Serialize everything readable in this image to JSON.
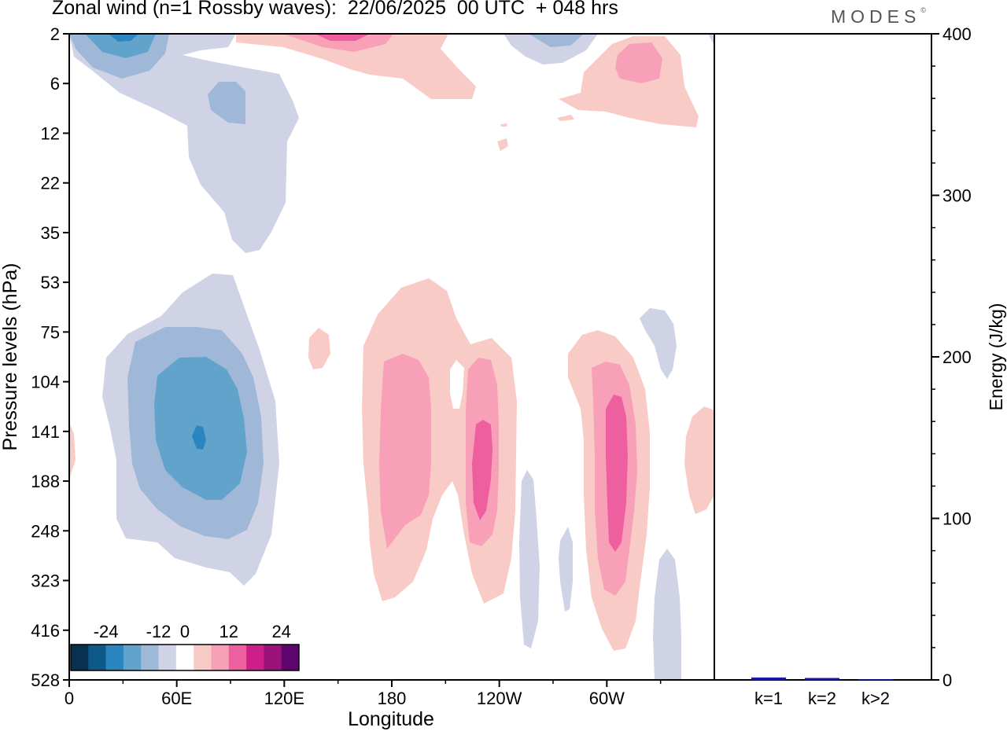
{
  "header": {
    "title": "Zonal wind (n=1 Rossby waves):  22/06/2025  00 UTC  + 048 hrs",
    "brand": "MODES",
    "brand_mark": "©"
  },
  "chart_data": [
    {
      "type": "heatmap",
      "xlabel": "Longitude",
      "ylabel": "Pressure levels (hPa)",
      "x_tick_labels": [
        "0",
        "60E",
        "120E",
        "180",
        "120W",
        "60W"
      ],
      "x_range_deg": [
        0,
        360
      ],
      "y_tick_labels": [
        "2",
        "6",
        "12",
        "22",
        "35",
        "53",
        "75",
        "104",
        "141",
        "188",
        "248",
        "323",
        "416",
        "528"
      ],
      "colorbar": {
        "labels": [
          "-24",
          "-12",
          "0",
          "12",
          "24"
        ],
        "levels": [
          -28,
          -24,
          -20,
          -16,
          -12,
          -8,
          -4,
          4,
          8,
          12,
          16,
          20,
          24,
          28
        ],
        "colors": [
          "#08314f",
          "#0d5a8a",
          "#2b86bf",
          "#62a3cc",
          "#9fb8d8",
          "#d0d3e6",
          "#ffffff",
          "#f9cbc6",
          "#f7a0b8",
          "#ee5fa0",
          "#cc1f8a",
          "#9a127a",
          "#5e066e"
        ]
      },
      "features": [
        {
          "lon": 62,
          "pressure_hPa": 141,
          "value_range": "-24 to -20"
        },
        {
          "lon": 195,
          "pressure_hPa": 160,
          "value_range": "8 to 12"
        },
        {
          "lon": 240,
          "pressure_hPa": 170,
          "value_range": "12 to 16"
        },
        {
          "lon": 303,
          "pressure_hPa": 160,
          "value_range": "12 to 16"
        },
        {
          "lon": 330,
          "pressure_hPa": 5,
          "value_range": "8 to 12"
        }
      ]
    },
    {
      "type": "bar",
      "ylabel": "Energy (J/kg)",
      "ylim": [
        0,
        400
      ],
      "y_ticks": [
        "0",
        "100",
        "200",
        "300",
        "400"
      ],
      "categories": [
        "k=1",
        "k=2",
        "k>2"
      ],
      "values": [
        1.5,
        1.2,
        0.4
      ],
      "bar_color": "#1a1aa8"
    }
  ]
}
